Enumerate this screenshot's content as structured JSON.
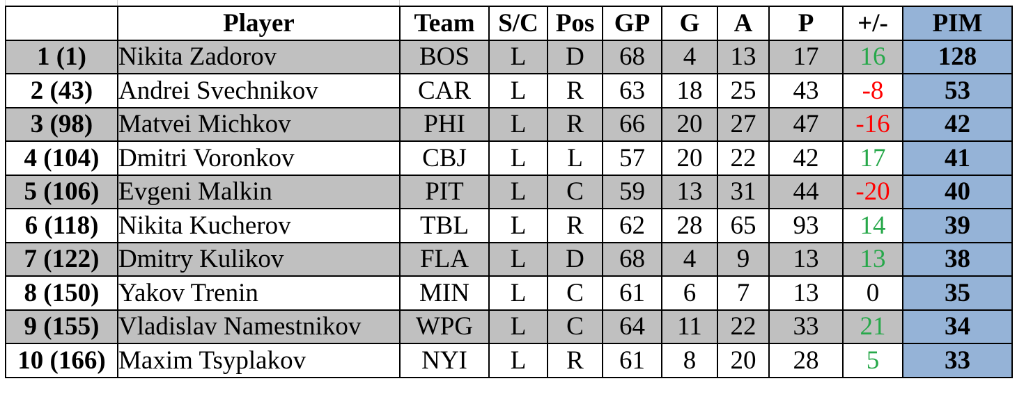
{
  "table": {
    "headers": {
      "rank": "",
      "player": "Player",
      "team": "Team",
      "sc": "S/C",
      "pos": "Pos",
      "gp": "GP",
      "g": "G",
      "a": "A",
      "p": "P",
      "plus_minus": "+/-",
      "pim": "PIM"
    },
    "rows": [
      {
        "rank": "1 (1)",
        "player": "Nikita Zadorov",
        "team": "BOS",
        "sc": "L",
        "pos": "D",
        "gp": "68",
        "g": "4",
        "a": "13",
        "p": "17",
        "plus_minus": "16",
        "pim": "128"
      },
      {
        "rank": "2 (43)",
        "player": "Andrei Svechnikov",
        "team": "CAR",
        "sc": "L",
        "pos": "R",
        "gp": "63",
        "g": "18",
        "a": "25",
        "p": "43",
        "plus_minus": "-8",
        "pim": "53"
      },
      {
        "rank": "3 (98)",
        "player": "Matvei Michkov",
        "team": "PHI",
        "sc": "L",
        "pos": "R",
        "gp": "66",
        "g": "20",
        "a": "27",
        "p": "47",
        "plus_minus": "-16",
        "pim": "42"
      },
      {
        "rank": "4 (104)",
        "player": "Dmitri Voronkov",
        "team": "CBJ",
        "sc": "L",
        "pos": "L",
        "gp": "57",
        "g": "20",
        "a": "22",
        "p": "42",
        "plus_minus": "17",
        "pim": "41"
      },
      {
        "rank": "5 (106)",
        "player": "Evgeni Malkin",
        "team": "PIT",
        "sc": "L",
        "pos": "C",
        "gp": "59",
        "g": "13",
        "a": "31",
        "p": "44",
        "plus_minus": "-20",
        "pim": "40"
      },
      {
        "rank": "6 (118)",
        "player": "Nikita Kucherov",
        "team": "TBL",
        "sc": "L",
        "pos": "R",
        "gp": "62",
        "g": "28",
        "a": "65",
        "p": "93",
        "plus_minus": "14",
        "pim": "39"
      },
      {
        "rank": "7 (122)",
        "player": "Dmitry Kulikov",
        "team": "FLA",
        "sc": "L",
        "pos": "D",
        "gp": "68",
        "g": "4",
        "a": "9",
        "p": "13",
        "plus_minus": "13",
        "pim": "38"
      },
      {
        "rank": "8 (150)",
        "player": "Yakov Trenin",
        "team": "MIN",
        "sc": "L",
        "pos": "C",
        "gp": "61",
        "g": "6",
        "a": "7",
        "p": "13",
        "plus_minus": "0",
        "pim": "35"
      },
      {
        "rank": "9 (155)",
        "player": "Vladislav Namestnikov",
        "team": "WPG",
        "sc": "L",
        "pos": "C",
        "gp": "64",
        "g": "11",
        "a": "22",
        "p": "33",
        "plus_minus": "21",
        "pim": "34"
      },
      {
        "rank": "10 (166)",
        "player": "Maxim Tsyplakov",
        "team": "NYI",
        "sc": "L",
        "pos": "R",
        "gp": "61",
        "g": "8",
        "a": "20",
        "p": "28",
        "plus_minus": "5",
        "pim": "33"
      }
    ]
  },
  "colors": {
    "row_shade": "#c0c0c0",
    "pim_highlight": "#95b3d7",
    "positive": "#27a84a",
    "negative": "#ff0000"
  }
}
